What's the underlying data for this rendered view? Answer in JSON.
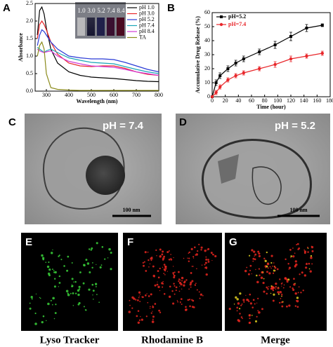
{
  "chart_data": [
    {
      "type": "line",
      "panel": "A",
      "xlabel": "Wavelength (nm)",
      "ylabel": "Absorbance",
      "x": [
        260,
        270,
        280,
        290,
        300,
        320,
        350,
        400,
        450,
        500,
        550,
        600,
        650,
        700,
        750,
        800
      ],
      "xlim": [
        250,
        800
      ],
      "xticks": [
        300,
        400,
        500,
        600,
        700,
        800
      ],
      "ylim": [
        0,
        2.5
      ],
      "yticks": [
        {
          "value": 0,
          "label": "0.0"
        },
        0.5,
        {
          "value": 1,
          "label": "1.0"
        },
        1.5,
        {
          "value": 2,
          "label": "2.0"
        },
        2.5
      ],
      "legend": "upper right",
      "inset_labels": [
        "1.0",
        "3.0",
        "5.2",
        "7.4",
        "8.4"
      ],
      "series": [
        {
          "name": "pH 1.0",
          "color": "#000000",
          "values": [
            1.6,
            2.3,
            2.4,
            2.2,
            1.8,
            1.2,
            0.8,
            0.55,
            0.45,
            0.4,
            0.38,
            0.36,
            0.33,
            0.3,
            0.28,
            0.27
          ]
        },
        {
          "name": "pH 3.0",
          "color": "#e8262a",
          "values": [
            1.5,
            1.9,
            2.0,
            1.9,
            1.75,
            1.4,
            1.05,
            0.8,
            0.72,
            0.7,
            0.72,
            0.72,
            0.65,
            0.55,
            0.48,
            0.45
          ]
        },
        {
          "name": "pH 5.2",
          "color": "#2a3bd6",
          "values": [
            1.3,
            1.6,
            1.75,
            1.7,
            1.6,
            1.4,
            1.2,
            1.0,
            0.95,
            0.92,
            0.92,
            0.9,
            0.82,
            0.72,
            0.62,
            0.55
          ]
        },
        {
          "name": "pH 7.4",
          "color": "#1aa6b8",
          "values": [
            1.25,
            1.2,
            1.15,
            1.1,
            1.15,
            1.2,
            1.1,
            0.95,
            0.88,
            0.82,
            0.8,
            0.78,
            0.7,
            0.62,
            0.55,
            0.5
          ]
        },
        {
          "name": "pH 8.4",
          "color": "#d23ad6",
          "values": [
            1.2,
            1.15,
            1.12,
            1.1,
            1.12,
            1.15,
            1.0,
            0.85,
            0.78,
            0.72,
            0.7,
            0.68,
            0.62,
            0.55,
            0.5,
            0.45
          ]
        },
        {
          "name": "TA",
          "color": "#8a8a1a",
          "values": [
            1.0,
            1.3,
            1.4,
            1.2,
            0.5,
            0.1,
            0.05,
            0.03,
            0.02,
            0.02,
            0.02,
            0.02,
            0.02,
            0.02,
            0.02,
            0.02
          ]
        }
      ]
    },
    {
      "type": "line",
      "panel": "B",
      "xlabel": "Time (hour)",
      "ylabel": "Accumulative Drug Release (%)",
      "x": [
        0,
        6,
        12,
        24,
        36,
        48,
        72,
        96,
        120,
        144,
        168
      ],
      "xlim": [
        0,
        180
      ],
      "xticks": [
        0,
        20,
        40,
        60,
        80,
        100,
        120,
        140,
        160,
        180
      ],
      "ylim": [
        0,
        60
      ],
      "yticks": [
        0,
        10,
        20,
        30,
        40,
        50,
        60
      ],
      "legend": "upper left",
      "series": [
        {
          "name": "pH=5.2",
          "color": "#000000",
          "marker": "square",
          "values": [
            0,
            10,
            15,
            20,
            24,
            27,
            32,
            37,
            43,
            49,
            51
          ],
          "errors": [
            0,
            2,
            2,
            2,
            2,
            2,
            2,
            2.5,
            3,
            2.5,
            1
          ]
        },
        {
          "name": "pH=7.4",
          "color": "#e8262a",
          "marker": "circle",
          "values": [
            0,
            3,
            7,
            12,
            15,
            17,
            20,
            23,
            27,
            29,
            31
          ],
          "errors": [
            0,
            1.5,
            1.5,
            1.5,
            1.5,
            1.5,
            1.5,
            2,
            2,
            1.5,
            1.5
          ]
        }
      ]
    }
  ],
  "panels": [
    {
      "letter": "C",
      "label": "pH = 7.4",
      "scale_bar": "100 nm"
    },
    {
      "letter": "D",
      "label": "pH = 5.2",
      "scale_bar": "100 nm"
    },
    {
      "letter": "E",
      "caption": "Lyso Tracker"
    },
    {
      "letter": "F",
      "caption": "Rhodamine B"
    },
    {
      "letter": "G",
      "caption": "Merge"
    }
  ]
}
